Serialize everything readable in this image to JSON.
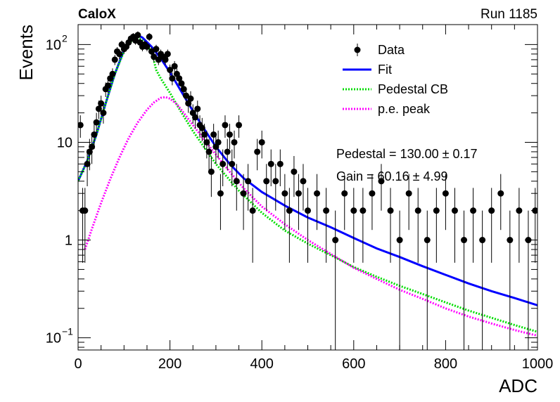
{
  "header": {
    "experiment": "CaloX",
    "run": "Run 1185"
  },
  "stats": {
    "pedestal": "Pedestal = 130.00 ± 0.17",
    "gain": "Gain = 60.16 ± 4.99"
  },
  "chart_data": {
    "type": "scatter",
    "xlabel": "ADC",
    "ylabel": "Events",
    "xlim": [
      0,
      1000
    ],
    "ylim": [
      0.075,
      160
    ],
    "log_y": true,
    "grid": false,
    "legend_position": "top-right",
    "x_ticks": [
      0,
      200,
      400,
      600,
      800,
      1000
    ],
    "y_ticks": [
      {
        "value": 0.1,
        "base": "10",
        "exp": "−1"
      },
      {
        "value": 1,
        "label": "1"
      },
      {
        "value": 10,
        "label": "10"
      },
      {
        "value": 100,
        "base": "10",
        "exp": "2"
      }
    ],
    "legend": [
      {
        "label": "Data",
        "kind": "marker",
        "color": "#000000"
      },
      {
        "label": "Fit",
        "kind": "solid",
        "color": "#0000ff"
      },
      {
        "label": "Pedestal CB",
        "kind": "dotted",
        "color": "#00dd00"
      },
      {
        "label": "p.e. peak",
        "kind": "dotted",
        "color": "#ff00ff"
      }
    ],
    "series": [
      {
        "name": "Data",
        "color": "#000000",
        "x": [
          5,
          10,
          15,
          20,
          25,
          30,
          35,
          40,
          45,
          50,
          55,
          60,
          65,
          70,
          75,
          80,
          85,
          90,
          95,
          100,
          105,
          110,
          115,
          120,
          125,
          130,
          135,
          140,
          145,
          150,
          155,
          160,
          165,
          170,
          175,
          180,
          185,
          190,
          195,
          200,
          205,
          210,
          215,
          220,
          225,
          230,
          235,
          240,
          245,
          250,
          255,
          260,
          265,
          270,
          275,
          280,
          285,
          290,
          295,
          300,
          305,
          310,
          315,
          320,
          325,
          330,
          335,
          340,
          345,
          350,
          360,
          370,
          380,
          390,
          400,
          410,
          420,
          430,
          440,
          450,
          460,
          470,
          480,
          490,
          500,
          520,
          540,
          560,
          580,
          600,
          620,
          640,
          660,
          680,
          700,
          720,
          740,
          760,
          780,
          800,
          820,
          840,
          860,
          880,
          900,
          920,
          940,
          960,
          980,
          995
        ],
        "y": [
          15,
          2,
          2,
          6,
          8,
          9,
          12,
          16,
          22,
          25,
          20,
          35,
          38,
          45,
          50,
          70,
          85,
          80,
          100,
          90,
          95,
          105,
          115,
          120,
          110,
          125,
          105,
          95,
          100,
          95,
          120,
          85,
          75,
          90,
          70,
          80,
          75,
          70,
          80,
          55,
          45,
          60,
          50,
          45,
          40,
          35,
          30,
          25,
          28,
          20,
          18,
          22,
          15,
          14,
          12,
          10,
          8,
          5,
          12,
          9,
          10,
          3,
          6,
          15,
          8,
          12,
          6,
          10,
          4,
          15,
          3,
          4,
          2,
          8,
          10,
          4,
          6,
          4,
          6,
          3,
          2,
          5,
          3,
          4,
          2,
          3,
          2,
          1,
          3,
          2,
          2,
          3,
          4,
          2,
          1,
          3,
          2,
          1,
          2,
          3,
          2,
          1,
          2,
          1,
          2,
          3,
          1,
          2,
          1,
          2
        ]
      },
      {
        "name": "Fit",
        "color": "#0000ff",
        "x": [
          0,
          20,
          40,
          60,
          80,
          100,
          120,
          130,
          140,
          160,
          180,
          200,
          220,
          240,
          260,
          280,
          300,
          330,
          360,
          400,
          450,
          500,
          550,
          600,
          650,
          700,
          750,
          800,
          850,
          900,
          950,
          1000
        ],
        "y": [
          4,
          6.5,
          12,
          25,
          50,
          88,
          120,
          124,
          118,
          95,
          72,
          52,
          36,
          25,
          17.5,
          12.5,
          9,
          6,
          4.3,
          3.1,
          2.25,
          1.7,
          1.35,
          1.05,
          0.82,
          0.67,
          0.54,
          0.44,
          0.36,
          0.3,
          0.255,
          0.215
        ]
      },
      {
        "name": "Pedestal CB",
        "color": "#00dd00",
        "x": [
          0,
          20,
          40,
          60,
          80,
          100,
          120,
          130,
          140,
          160,
          170,
          180,
          200,
          220,
          250,
          300,
          350,
          400,
          450,
          500,
          550,
          600,
          650,
          700,
          750,
          800,
          850,
          900,
          950,
          1000
        ],
        "y": [
          4,
          6.5,
          12,
          25,
          50,
          85,
          115,
          118,
          110,
          85,
          55,
          45,
          32,
          22,
          13,
          6,
          3.2,
          1.9,
          1.25,
          0.92,
          0.7,
          0.53,
          0.42,
          0.34,
          0.28,
          0.23,
          0.19,
          0.16,
          0.135,
          0.115
        ]
      },
      {
        "name": "p.e. peak",
        "color": "#ff00ff",
        "x": [
          15,
          30,
          50,
          70,
          90,
          110,
          130,
          150,
          165,
          180,
          190,
          200,
          215,
          230,
          250,
          275,
          300,
          330,
          360,
          400,
          450,
          500,
          550,
          600,
          650,
          700,
          750,
          800,
          850,
          900,
          950,
          1000
        ],
        "y": [
          0.8,
          1.3,
          2.4,
          4.2,
          7,
          11,
          16,
          21.5,
          25.5,
          28.5,
          29,
          28,
          24.5,
          20,
          15,
          10.5,
          7.5,
          5,
          3.4,
          2.2,
          1.45,
          1.0,
          0.72,
          0.52,
          0.4,
          0.31,
          0.25,
          0.2,
          0.165,
          0.14,
          0.12,
          0.105
        ]
      }
    ]
  }
}
